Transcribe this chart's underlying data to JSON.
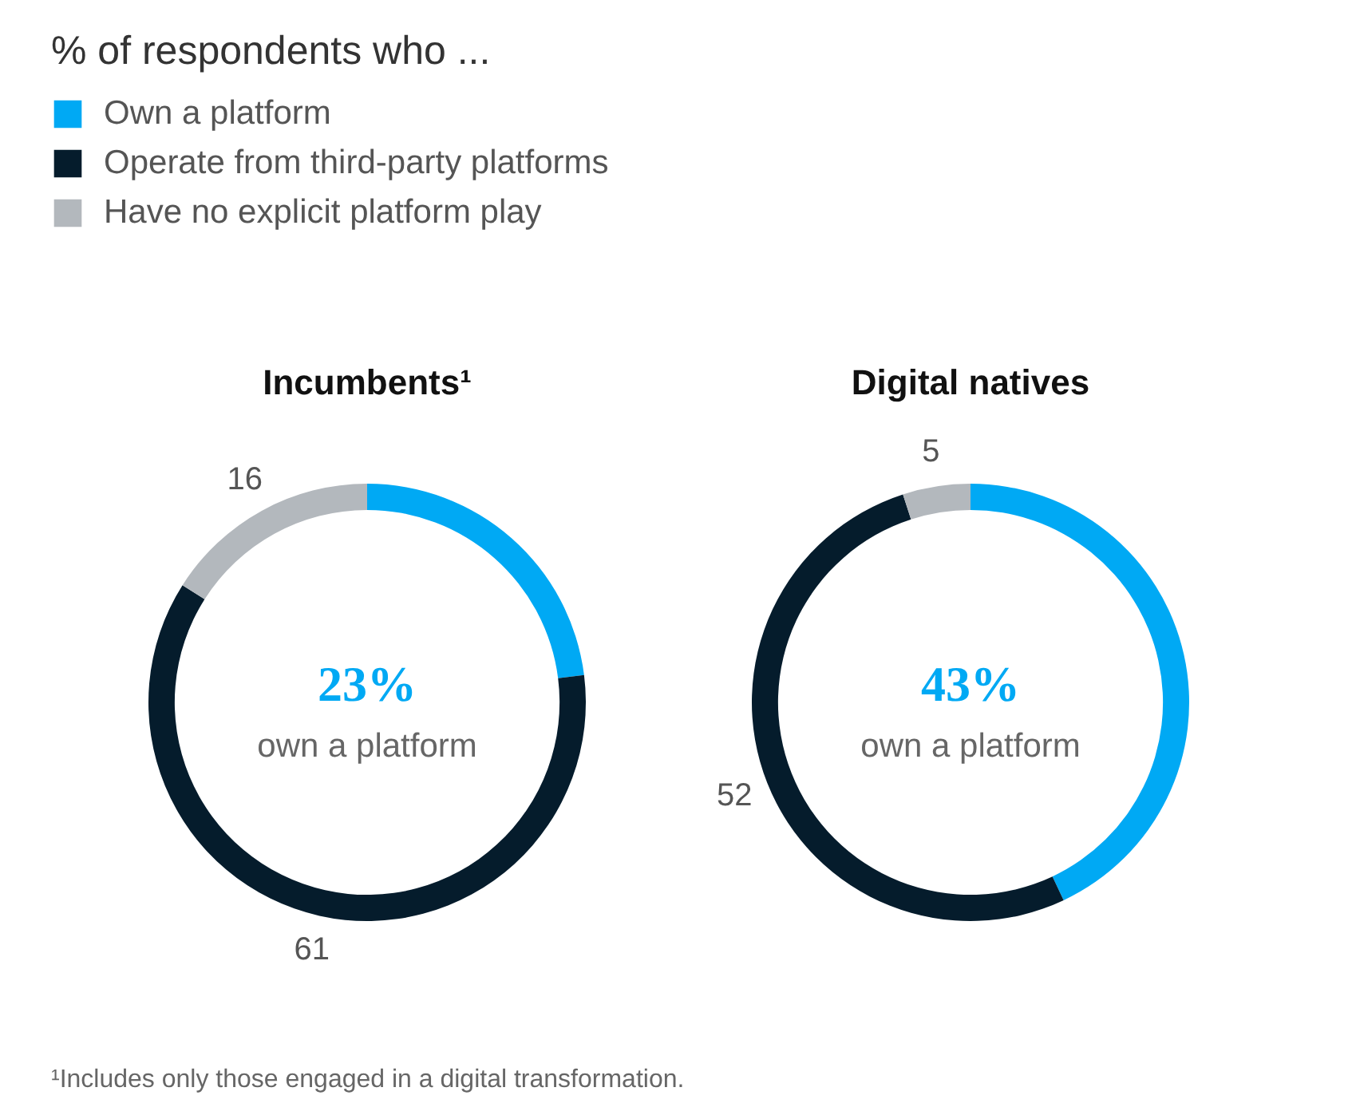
{
  "chart_data": {
    "type": "donut",
    "legend_title": "% of respondents who ...",
    "legend": "top left",
    "categories": [
      "Own a platform",
      "Operate from third-party platforms",
      "Have no explicit platform play"
    ],
    "colors": [
      "#00a9f4",
      "#051c2c",
      "#b3b8bd"
    ],
    "series": [
      {
        "name": "Incumbents¹",
        "values": [
          23,
          61,
          16
        ],
        "value_labels": [
          null,
          "61",
          "16"
        ]
      },
      {
        "name": "Digital natives",
        "values": [
          43,
          52,
          5
        ],
        "value_labels": [
          null,
          "52",
          "5"
        ]
      }
    ],
    "annotations": [
      "23%",
      "own a platform",
      "43%",
      "own a platform",
      "¹Includes only those engaged in a digital transformation."
    ]
  }
}
